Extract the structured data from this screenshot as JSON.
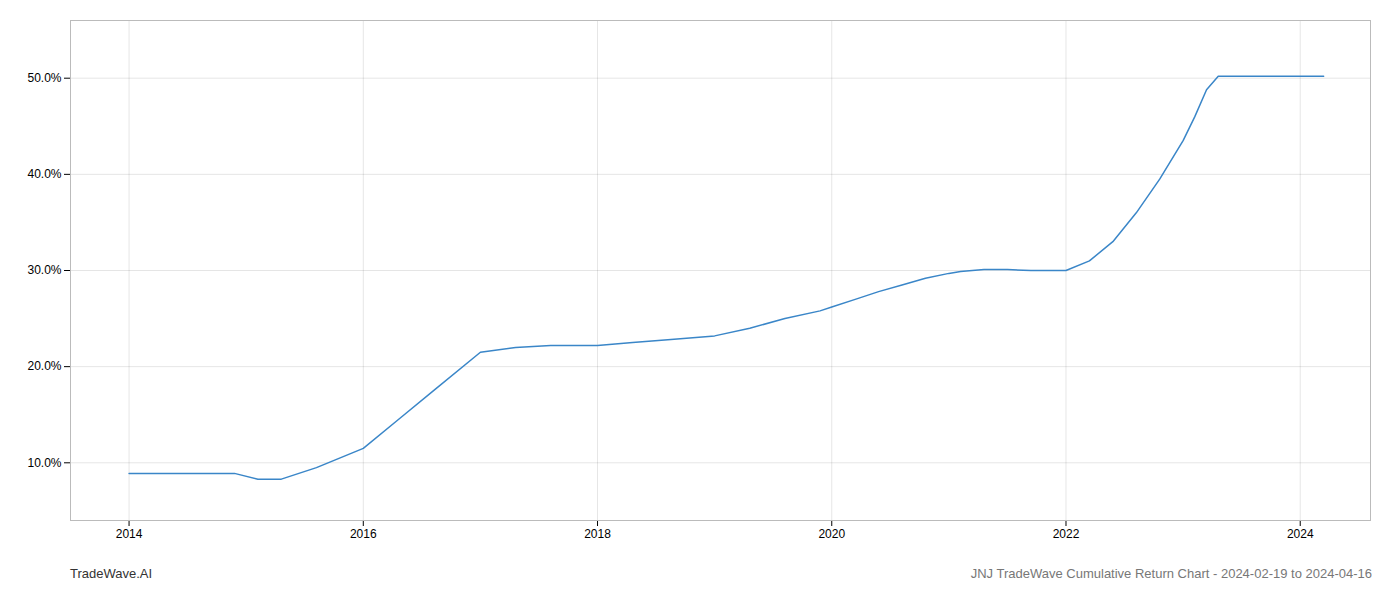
{
  "chart_data": {
    "type": "line",
    "title": "JNJ TradeWave Cumulative Return Chart - 2024-02-19 to 2024-04-16",
    "annotations": [
      "TradeWave.AI"
    ],
    "x": [
      2014.0,
      2014.1,
      2014.3,
      2014.6,
      2014.9,
      2015.1,
      2015.3,
      2015.6,
      2016.0,
      2016.3,
      2016.6,
      2017.0,
      2017.3,
      2017.6,
      2017.9,
      2018.0,
      2018.3,
      2018.6,
      2019.0,
      2019.3,
      2019.6,
      2019.9,
      2020.0,
      2020.2,
      2020.4,
      2020.6,
      2020.8,
      2021.0,
      2021.1,
      2021.2,
      2021.3,
      2021.5,
      2021.7,
      2021.9,
      2022.0,
      2022.2,
      2022.4,
      2022.6,
      2022.8,
      2023.0,
      2023.1,
      2023.2,
      2023.3,
      2023.5,
      2024.0,
      2024.2
    ],
    "values": [
      0.089,
      0.089,
      0.089,
      0.089,
      0.089,
      0.083,
      0.083,
      0.095,
      0.115,
      0.145,
      0.175,
      0.215,
      0.22,
      0.222,
      0.222,
      0.222,
      0.225,
      0.228,
      0.232,
      0.24,
      0.25,
      0.258,
      0.262,
      0.27,
      0.278,
      0.285,
      0.292,
      0.297,
      0.299,
      0.3,
      0.301,
      0.301,
      0.3,
      0.3,
      0.3,
      0.31,
      0.33,
      0.36,
      0.395,
      0.435,
      0.46,
      0.488,
      0.502,
      0.502,
      0.502,
      0.502
    ],
    "color": "#3a86c8",
    "xlim": [
      2013.5,
      2024.6
    ],
    "ylim": [
      0.04,
      0.56
    ],
    "xticks": [
      2014,
      2016,
      2018,
      2020,
      2022,
      2024
    ],
    "yticks": [
      {
        "value": 0.1,
        "label": "10.0%"
      },
      {
        "value": 0.2,
        "label": "20.0%"
      },
      {
        "value": 0.3,
        "label": "30.0%"
      },
      {
        "value": 0.4,
        "label": "40.0%"
      },
      {
        "value": 0.5,
        "label": "50.0%"
      }
    ],
    "grid": true
  }
}
